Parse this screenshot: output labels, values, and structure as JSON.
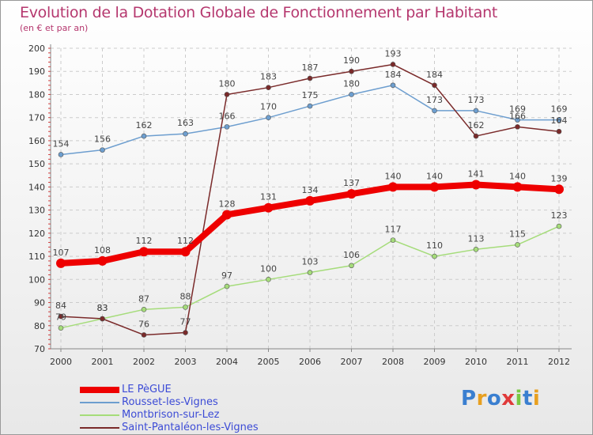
{
  "chart_data": {
    "type": "line",
    "title": "Evolution de la Dotation Globale de Fonctionnement par Habitant",
    "subtitle": "(en € et par an)",
    "categories": [
      "2000",
      "2001",
      "2002",
      "2003",
      "2004",
      "2005",
      "2006",
      "2007",
      "2008",
      "2009",
      "2010",
      "2011",
      "2012"
    ],
    "ylim": [
      70,
      200
    ],
    "yticks": [
      70,
      80,
      90,
      100,
      110,
      120,
      130,
      140,
      150,
      160,
      170,
      180,
      190,
      200
    ],
    "grid": true,
    "legend_position": "bottom-left",
    "series": [
      {
        "name": "LE PèGUE",
        "color": "#ee0000",
        "values": [
          107,
          108,
          112,
          112,
          128,
          131,
          134,
          137,
          140,
          140,
          141,
          140,
          139
        ]
      },
      {
        "name": "Rousset-les-Vignes",
        "color": "#6d9ecf",
        "values": [
          154,
          156,
          162,
          163,
          166,
          170,
          175,
          180,
          184,
          173,
          173,
          169,
          169
        ]
      },
      {
        "name": "Montbrison-sur-Lez",
        "color": "#a5dc7a",
        "values": [
          79,
          83,
          87,
          88,
          97,
          100,
          103,
          106,
          117,
          110,
          113,
          115,
          123
        ]
      },
      {
        "name": "Saint-Pantaléon-les-Vignes",
        "color": "#7a2a2a",
        "values": [
          84,
          83,
          76,
          77,
          180,
          183,
          187,
          190,
          193,
          184,
          162,
          166,
          164
        ]
      }
    ]
  },
  "logo": {
    "text": "Proxiti",
    "letter_colors": [
      "#3a7fd0",
      "#e8a020",
      "#3a7fd0",
      "#e03a3a",
      "#7ac943",
      "#3a7fd0",
      "#e8a020"
    ]
  }
}
